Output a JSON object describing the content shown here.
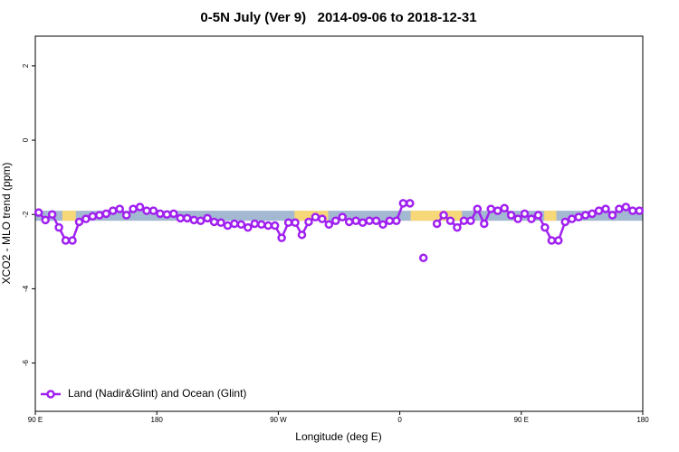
{
  "chart_data": {
    "type": "line",
    "title": "0-5N July (Ver 9)   2014-09-06 to 2018-12-31",
    "xlabel": "Longitude (deg E)",
    "ylabel": "XCO2 - MLO trend (ppm)",
    "xlim": [
      90,
      540
    ],
    "ylim": [
      -7.3,
      2.8
    ],
    "xticks": [
      {
        "value": 90,
        "label": "90 E"
      },
      180,
      {
        "value": 270,
        "label": "90 W"
      },
      {
        "value": 360,
        "label": "0"
      },
      {
        "value": 450,
        "label": "90 E"
      },
      {
        "value": 540,
        "label": "180"
      }
    ],
    "yticks": [
      2,
      0,
      -2,
      -4,
      -6
    ],
    "legend": "bottom-left",
    "background_band": {
      "ylim": [
        -2.17,
        -1.9
      ],
      "color": "#a3b8d1",
      "land_color": "#f7d878",
      "land_ranges": [
        [
          110,
          120
        ],
        [
          282,
          307
        ],
        [
          368,
          406
        ],
        [
          467,
          476
        ]
      ]
    },
    "x": [
      92.5,
      97.5,
      102.5,
      107.5,
      112.5,
      117.5,
      122.5,
      127.5,
      132.5,
      137.5,
      142.5,
      147.5,
      152.5,
      157.5,
      162.5,
      167.5,
      172.5,
      177.5,
      182.5,
      187.5,
      192.5,
      197.5,
      202.5,
      207.5,
      212.5,
      217.5,
      222.5,
      227.5,
      232.5,
      237.5,
      242.5,
      247.5,
      252.5,
      257.5,
      262.5,
      267.5,
      272.5,
      277.5,
      282.5,
      287.5,
      292.5,
      297.5,
      302.5,
      307.5,
      312.5,
      317.5,
      322.5,
      327.5,
      332.5,
      337.5,
      342.5,
      347.5,
      352.5,
      357.5,
      362.5,
      367.5,
      372.5,
      377.5,
      382.5,
      387.5,
      392.5,
      397.5,
      402.5,
      407.5,
      412.5,
      417.5,
      422.5,
      427.5,
      432.5,
      437.5,
      442.5,
      447.5,
      452.5,
      457.5,
      462.5,
      467.5,
      472.5,
      477.5,
      482.5,
      487.5,
      492.5,
      497.5,
      502.5,
      507.5,
      512.5,
      517.5,
      522.5,
      527.5,
      532.5,
      537.5
    ],
    "series": [
      {
        "name": "Land (Nadir&Glint) and Ocean (Glint)",
        "color": "#a020f0",
        "values": [
          -1.95,
          -2.15,
          -2.0,
          -2.35,
          -2.7,
          -2.7,
          -2.2,
          -2.12,
          -2.05,
          -2.02,
          -1.98,
          -1.9,
          -1.85,
          -2.02,
          -1.85,
          -1.8,
          -1.9,
          -1.9,
          -1.98,
          -2.0,
          -1.98,
          -2.1,
          -2.1,
          -2.15,
          -2.17,
          -2.1,
          -2.2,
          -2.22,
          -2.3,
          -2.25,
          -2.27,
          -2.35,
          -2.25,
          -2.27,
          -2.3,
          -2.3,
          -2.63,
          -2.22,
          -2.22,
          -2.55,
          -2.2,
          -2.07,
          -2.12,
          -2.27,
          -2.17,
          -2.07,
          -2.2,
          -2.17,
          -2.22,
          -2.17,
          -2.17,
          -2.27,
          -2.17,
          -2.17,
          -1.7,
          -1.7,
          null,
          -3.17,
          null,
          -2.25,
          -2.02,
          -2.17,
          -2.35,
          -2.17,
          -2.17,
          -1.85,
          -2.25,
          -1.85,
          -1.9,
          -1.83,
          -2.02,
          -2.12,
          -1.98,
          -2.12,
          -2.02,
          -2.35,
          -2.7,
          -2.7,
          -2.2,
          -2.12,
          -2.07,
          -2.02,
          -1.98,
          -1.9,
          -1.85,
          -2.02,
          -1.85,
          -1.8,
          -1.9,
          -1.9
        ]
      }
    ]
  }
}
